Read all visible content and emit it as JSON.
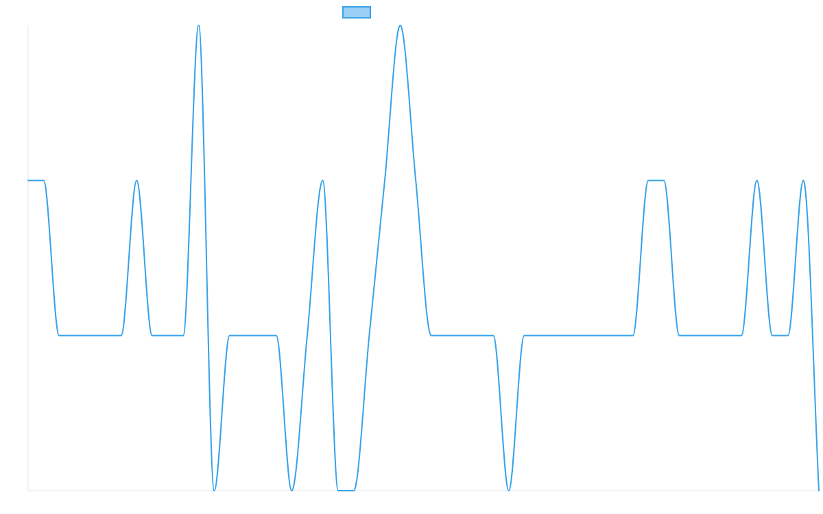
{
  "chart_data": {
    "type": "line",
    "title": "",
    "xlabel": "",
    "ylabel": "",
    "ylim": [
      0,
      3
    ],
    "xlim": [
      0,
      51
    ],
    "grid": false,
    "legend": {
      "position": "top-center",
      "entries": [
        ""
      ]
    },
    "x": [
      0,
      1,
      2,
      3,
      4,
      5,
      6,
      7,
      8,
      9,
      10,
      11,
      12,
      13,
      14,
      15,
      16,
      17,
      18,
      19,
      20,
      21,
      22,
      23,
      24,
      25,
      26,
      27,
      28,
      29,
      30,
      31,
      32,
      33,
      34,
      35,
      36,
      37,
      38,
      39,
      40,
      41,
      42,
      43,
      44,
      45,
      46,
      47,
      48,
      49,
      50,
      51
    ],
    "series": [
      {
        "name": "",
        "color": "#36a2eb",
        "fill": "#9ad0f5",
        "values": [
          2,
          2,
          1,
          1,
          1,
          1,
          1,
          2,
          1,
          1,
          1,
          3,
          0,
          1,
          1,
          1,
          1,
          0,
          1,
          2,
          0,
          0,
          1,
          2,
          3,
          2,
          1,
          1,
          1,
          1,
          1,
          0,
          1,
          1,
          1,
          1,
          1,
          1,
          1,
          1,
          2,
          2,
          1,
          1,
          1,
          1,
          1,
          2,
          1,
          1,
          2,
          0
        ]
      }
    ]
  }
}
